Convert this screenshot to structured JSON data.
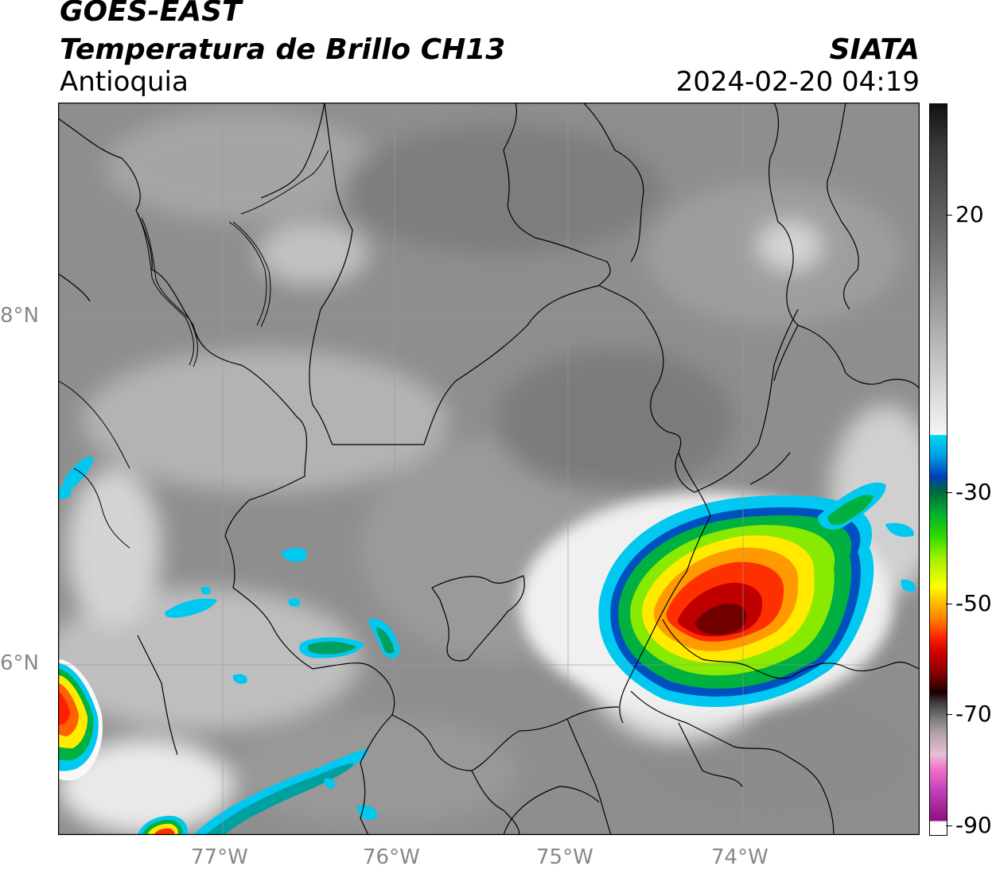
{
  "header": {
    "satellite": "GOES-EAST",
    "product": "Temperatura de Brillo CH13",
    "region": "Antioquia",
    "agency": "SIATA",
    "datetime": "2024-02-20 04:19"
  },
  "axes": {
    "lat_ticks": [
      "8°N",
      "6°N"
    ],
    "lon_ticks": [
      "77°W",
      "76°W",
      "75°W",
      "74°W"
    ]
  },
  "colorbar": {
    "labels": [
      "20",
      "-30",
      "-50",
      "-70",
      "-90"
    ]
  },
  "colors": {
    "frame": "#000000",
    "background_gray": "#8a8a8a",
    "tick_text": "#888888"
  }
}
